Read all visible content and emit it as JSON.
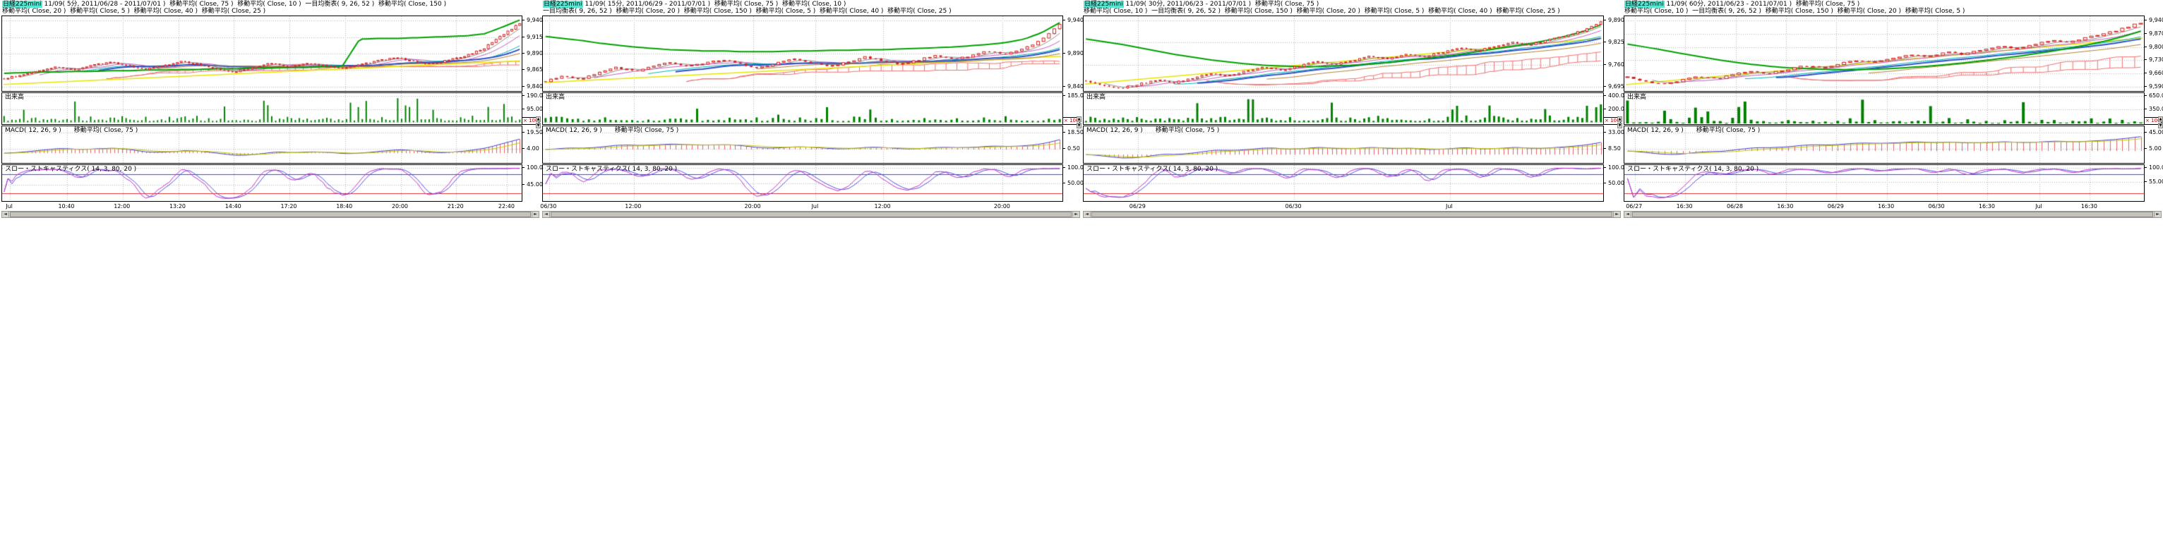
{
  "window": {
    "background": "#ffffff"
  },
  "scrollbar": {
    "left": "◄",
    "right": "►",
    "up": "▲",
    "down": "▼"
  },
  "colors": {
    "highlight": "#57e6d2",
    "candle": "#d62020",
    "cloud": "#ef7070",
    "green_ma": "#00a000",
    "long_ma": "#e6e600",
    "volume": "#008000",
    "macd_hist": "#e06060",
    "macd_line": "#4040d0",
    "macd_signal": "#c8c800",
    "stoch_k": "#c030c0",
    "stoch_d": "#5050e0",
    "stoch_ref_high": "#4040ff",
    "stoch_ref_low": "#e03030",
    "grid": "#b4b4b4"
  },
  "ma_lines": [
    {
      "window": 5,
      "color": "#909090",
      "lw": 1
    },
    {
      "window": 10,
      "color": "#c060c0",
      "lw": 1
    },
    {
      "window": 20,
      "color": "#00b4b4",
      "lw": 1
    },
    {
      "window": 25,
      "color": "#3050c8",
      "lw": 2
    },
    {
      "window": 40,
      "color": "#b08030",
      "lw": 1
    }
  ],
  "panels": [
    {
      "symbol": "日経225mini",
      "contract": " 11/09( 5分, 2011/06/28 - 2011/07/01 )  ",
      "indicators_line1": "移動平均( Close, 75 )  移動平均( Close, 10 )  一目均衡表( 9, 26, 52 )  移動平均( Close, 150 )",
      "indicators_line2": "移動平均( Close, 20 )  移動平均( Close, 5 )  移動平均( Close, 40 )  移動平均( Close, 25 )",
      "volume_label": "出来高",
      "macd_label": "MACD( 12, 26, 9 )",
      "macd_ma_label": "移動平均( Close, 75 )",
      "stoch_label": "スロー・ストキャスティクス( 14, 3, 80, 20 )",
      "scale_badge": "× 100",
      "price_ticks": [
        "9,940",
        "9,915",
        "9,890",
        "9,865",
        "9,840"
      ],
      "volume_ticks": [
        "190.00",
        "95.00",
        "0.00"
      ],
      "macd_ticks": [
        "19.50",
        "4.00"
      ],
      "stoch_ticks": [
        "100.00",
        "45.00"
      ],
      "time_labels": [
        {
          "t": "Jul",
          "f": 0.015
        },
        {
          "t": "10:40",
          "f": 0.125
        },
        {
          "t": "12:00",
          "f": 0.232
        },
        {
          "t": "13:20",
          "f": 0.339
        },
        {
          "t": "14:40",
          "f": 0.446
        },
        {
          "t": "17:20",
          "f": 0.553
        },
        {
          "t": "18:40",
          "f": 0.66
        },
        {
          "t": "20:00",
          "f": 0.767
        },
        {
          "t": "21:20",
          "f": 0.874
        },
        {
          "t": "22:40",
          "f": 0.972
        }
      ]
    },
    {
      "symbol": "日経225mini",
      "contract": " 11/09( 15分, 2011/06/29 - 2011/07/01 )  ",
      "indicators_line1": "移動平均( Close, 75 )  移動平均( Close, 10 )",
      "indicators_line2": "一目均衡表( 9, 26, 52 )  移動平均( Close, 20 )  移動平均( Close, 150 )  移動平均( Close, 5 )  移動平均( Close, 40 )  移動平均( Close, 25 )",
      "volume_label": "出来高",
      "macd_label": "MACD( 12, 26, 9 )",
      "macd_ma_label": "移動平均( Close, 75 )",
      "stoch_label": "スロー・ストキャスティクス( 14, 3, 80, 20 )",
      "scale_badge": "× 100",
      "price_ticks": [
        "9,940",
        "9,890",
        "9,840"
      ],
      "volume_ticks": [
        "185.00",
        "0.00"
      ],
      "macd_ticks": [
        "18.50",
        "0.50"
      ],
      "stoch_ticks": [
        "100.00",
        "50.00"
      ],
      "time_labels": [
        {
          "t": "06/30",
          "f": 0.012
        },
        {
          "t": "12:00",
          "f": 0.175
        },
        {
          "t": "20:00",
          "f": 0.405
        },
        {
          "t": "Jul",
          "f": 0.525
        },
        {
          "t": "12:00",
          "f": 0.655
        },
        {
          "t": "20:00",
          "f": 0.885
        }
      ]
    },
    {
      "symbol": "日経225mini",
      "contract": " 11/09( 30分, 2011/06/23 - 2011/07/01 )  ",
      "indicators_line1": "移動平均( Close, 75 )",
      "indicators_line2": "移動平均( Close, 10 )  一目均衡表( 9, 26, 52 )  移動平均( Close, 150 )  移動平均( Close, 20 )  移動平均( Close, 5 )  移動平均( Close, 40 )  移動平均( Close, 25 )",
      "volume_label": "出来高",
      "macd_label": "MACD( 12, 26, 9 )",
      "macd_ma_label": "移動平均( Close, 75 )",
      "stoch_label": "スロー・ストキャスティクス( 14, 3, 80, 20 )",
      "scale_badge": "× 100",
      "price_ticks": [
        "9,890",
        "9,825",
        "9,760",
        "9,695"
      ],
      "volume_ticks": [
        "400.00",
        "200.00",
        "0.00"
      ],
      "macd_ticks": [
        "33.00",
        "8.50"
      ],
      "stoch_ticks": [
        "100.00",
        "50.00"
      ],
      "time_labels": [
        {
          "t": "06/29",
          "f": 0.105
        },
        {
          "t": "06/30",
          "f": 0.405
        },
        {
          "t": "Jul",
          "f": 0.705
        }
      ]
    },
    {
      "symbol": "日経225mini",
      "contract": " 11/09( 60分, 2011/06/23 - 2011/07/01 )  ",
      "indicators_line1": "移動平均( Close, 75 )",
      "indicators_line2": "移動平均( Close, 10 )  一目均衡表( 9, 26, 52 )  移動平均( Close, 150 )  移動平均( Close, 20 )  移動平均( Close, 5 )",
      "volume_label": "出来高",
      "macd_label": "MACD( 12, 26, 9 )",
      "macd_ma_label": "移動平均( Close, 75 )",
      "stoch_label": "スロー・ストキャスティクス( 14, 3, 80, 20 )",
      "scale_badge": "× 100",
      "price_ticks": [
        "9,940",
        "9,870",
        "9,800",
        "9,730",
        "9,660",
        "9,590"
      ],
      "volume_ticks": [
        "650.00",
        "350.00",
        "50.00"
      ],
      "macd_ticks": [
        "45.00",
        "5.00"
      ],
      "stoch_ticks": [
        "100.00",
        "55.00"
      ],
      "time_labels": [
        {
          "t": "06/27",
          "f": 0.02
        },
        {
          "t": "16:30",
          "f": 0.117
        },
        {
          "t": "06/28",
          "f": 0.214
        },
        {
          "t": "16:30",
          "f": 0.311
        },
        {
          "t": "06/29",
          "f": 0.408
        },
        {
          "t": "16:30",
          "f": 0.505
        },
        {
          "t": "06/30",
          "f": 0.602
        },
        {
          "t": "16:30",
          "f": 0.699
        },
        {
          "t": "Jul",
          "f": 0.799
        },
        {
          "t": "16:30",
          "f": 0.896
        }
      ]
    }
  ],
  "chart_data": [
    {
      "panel": 0,
      "type": "candlestick+volume+macd+stochastic",
      "interval": "5分",
      "candles": 132,
      "seed": 11,
      "close_path": [
        9852,
        9858,
        9864,
        9870,
        9865,
        9872,
        9877,
        9871,
        9866,
        9872,
        9878,
        9873,
        9867,
        9862,
        9869,
        9875,
        9870,
        9876,
        9872,
        9867,
        9873,
        9879,
        9884,
        9878,
        9874,
        9880,
        9887,
        9898,
        9918,
        9936
      ],
      "green_ma_path": [
        9860,
        9861,
        9862,
        9862,
        9863,
        9863,
        9864,
        9864,
        9865,
        9865,
        9866,
        9866,
        9867,
        9867,
        9868,
        9868,
        9869,
        9869,
        9870,
        9870,
        9912,
        9913,
        9913,
        9914,
        9915,
        9916,
        9917,
        9920,
        9930,
        9941
      ],
      "long_ma_line": [
        9843,
        9879
      ],
      "ref_lines": {
        "stoch_high": 80,
        "stoch_low": 20
      }
    },
    {
      "panel": 1,
      "type": "candlestick+volume+macd+stochastic",
      "interval": "15分",
      "candles": 96,
      "seed": 23,
      "close_path": [
        9848,
        9856,
        9850,
        9862,
        9869,
        9863,
        9871,
        9877,
        9870,
        9875,
        9881,
        9874,
        9868,
        9875,
        9882,
        9876,
        9870,
        9877,
        9885,
        9879,
        9873,
        9880,
        9887,
        9881,
        9887,
        9894,
        9889,
        9897,
        9912,
        9934
      ],
      "green_ma_path": [
        9916,
        9913,
        9910,
        9906,
        9903,
        9900,
        9898,
        9896,
        9895,
        9894,
        9894,
        9893,
        9893,
        9893,
        9894,
        9894,
        9895,
        9895,
        9896,
        9896,
        9897,
        9898,
        9899,
        9900,
        9902,
        9904,
        9907,
        9912,
        9922,
        9937
      ],
      "long_ma_line": [
        9846,
        9886
      ],
      "ref_lines": {
        "stoch_high": 80,
        "stoch_low": 20
      }
    },
    {
      "panel": 2,
      "type": "candlestick+volume+macd+stochastic",
      "interval": "30分",
      "candles": 112,
      "seed": 37,
      "close_path": [
        9712,
        9698,
        9690,
        9702,
        9714,
        9706,
        9720,
        9734,
        9726,
        9740,
        9752,
        9744,
        9756,
        9768,
        9760,
        9772,
        9784,
        9776,
        9790,
        9782,
        9796,
        9808,
        9800,
        9814,
        9826,
        9818,
        9832,
        9846,
        9860,
        9888
      ],
      "green_ma_path": [
        9836,
        9828,
        9820,
        9810,
        9800,
        9790,
        9782,
        9774,
        9768,
        9762,
        9758,
        9756,
        9754,
        9754,
        9756,
        9758,
        9762,
        9766,
        9772,
        9778,
        9784,
        9790,
        9798,
        9806,
        9814,
        9822,
        9832,
        9844,
        9858,
        9878
      ],
      "long_ma_line": [
        9702,
        9838
      ],
      "ref_lines": {
        "stoch_high": 80,
        "stoch_low": 20
      }
    },
    {
      "panel": 3,
      "type": "candlestick+volume+macd+stochastic",
      "interval": "60分",
      "candles": 84,
      "seed": 51,
      "close_path": [
        9640,
        9618,
        9602,
        9622,
        9642,
        9630,
        9652,
        9672,
        9660,
        9680,
        9700,
        9690,
        9710,
        9730,
        9720,
        9740,
        9760,
        9750,
        9772,
        9762,
        9784,
        9804,
        9794,
        9816,
        9836,
        9826,
        9850,
        9872,
        9898,
        9930
      ],
      "green_ma_path": [
        9816,
        9800,
        9784,
        9766,
        9750,
        9734,
        9720,
        9708,
        9698,
        9690,
        9686,
        9682,
        9680,
        9680,
        9682,
        9686,
        9692,
        9698,
        9706,
        9716,
        9726,
        9738,
        9750,
        9764,
        9778,
        9794,
        9812,
        9832,
        9856,
        9884
      ],
      "long_ma_line": [
        9600,
        9848
      ],
      "ref_lines": {
        "stoch_high": 80,
        "stoch_low": 20
      }
    }
  ]
}
